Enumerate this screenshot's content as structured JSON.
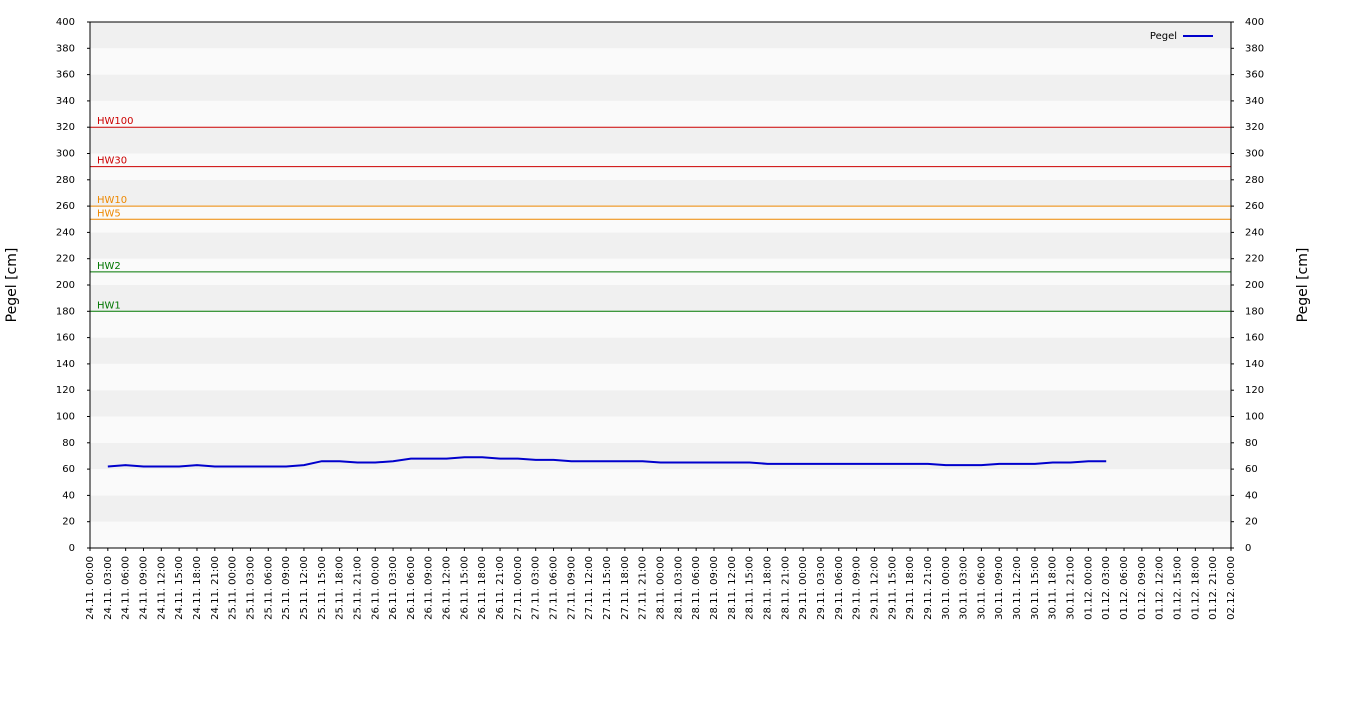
{
  "chart_data": {
    "type": "line",
    "ylabel": "Pegel [cm]",
    "y2label": "Pegel [cm]",
    "categories": [
      "24.11. 00:00",
      "24.11. 03:00",
      "24.11. 06:00",
      "24.11. 09:00",
      "24.11. 12:00",
      "24.11. 15:00",
      "24.11. 18:00",
      "24.11. 21:00",
      "25.11. 00:00",
      "25.11. 03:00",
      "25.11. 06:00",
      "25.11. 09:00",
      "25.11. 12:00",
      "25.11. 15:00",
      "25.11. 18:00",
      "25.11. 21:00",
      "26.11. 00:00",
      "26.11. 03:00",
      "26.11. 06:00",
      "26.11. 09:00",
      "26.11. 12:00",
      "26.11. 15:00",
      "26.11. 18:00",
      "26.11. 21:00",
      "27.11. 00:00",
      "27.11. 03:00",
      "27.11. 06:00",
      "27.11. 09:00",
      "27.11. 12:00",
      "27.11. 15:00",
      "27.11. 18:00",
      "27.11. 21:00",
      "28.11. 00:00",
      "28.11. 03:00",
      "28.11. 06:00",
      "28.11. 09:00",
      "28.11. 12:00",
      "28.11. 15:00",
      "28.11. 18:00",
      "28.11. 21:00",
      "29.11. 00:00",
      "29.11. 03:00",
      "29.11. 06:00",
      "29.11. 09:00",
      "29.11. 12:00",
      "29.11. 15:00",
      "29.11. 18:00",
      "29.11. 21:00",
      "30.11. 00:00",
      "30.11. 03:00",
      "30.11. 06:00",
      "30.11. 09:00",
      "30.11. 12:00",
      "30.11. 15:00",
      "30.11. 18:00",
      "30.11. 21:00",
      "01.12. 00:00",
      "01.12. 03:00",
      "01.12. 06:00",
      "01.12. 09:00",
      "01.12. 12:00",
      "01.12. 15:00",
      "01.12. 18:00",
      "01.12. 21:00",
      "02.12. 00:00"
    ],
    "series": [
      {
        "name": "Pegel",
        "color": "#0000cc",
        "values": [
          null,
          62,
          63,
          62,
          62,
          62,
          63,
          62,
          62,
          62,
          62,
          62,
          63,
          66,
          66,
          65,
          65,
          66,
          68,
          68,
          68,
          69,
          69,
          68,
          68,
          67,
          67,
          66,
          66,
          66,
          66,
          66,
          65,
          65,
          65,
          65,
          65,
          65,
          64,
          64,
          64,
          64,
          64,
          64,
          64,
          64,
          64,
          64,
          63,
          63,
          63,
          64,
          64,
          64,
          65,
          65,
          66,
          66,
          null,
          null,
          null,
          null,
          null,
          null,
          null
        ]
      }
    ],
    "thresholds": [
      {
        "label": "HW100",
        "value": 320,
        "color": "#cc0000"
      },
      {
        "label": "HW30",
        "value": 290,
        "color": "#cc0000"
      },
      {
        "label": "HW10",
        "value": 260,
        "color": "#ee8800"
      },
      {
        "label": "HW5",
        "value": 250,
        "color": "#ee8800"
      },
      {
        "label": "HW2",
        "value": 210,
        "color": "#007700"
      },
      {
        "label": "HW1",
        "value": 180,
        "color": "#007700"
      }
    ],
    "ylim": [
      0,
      400
    ],
    "yticks": [
      0,
      20,
      40,
      60,
      80,
      100,
      120,
      140,
      160,
      180,
      200,
      220,
      240,
      260,
      280,
      300,
      320,
      340,
      360,
      380,
      400
    ],
    "y2lim": [
      0,
      400
    ],
    "y2ticks": [
      0,
      20,
      40,
      60,
      80,
      100,
      120,
      140,
      160,
      180,
      200,
      220,
      240,
      260,
      280,
      300,
      320,
      340,
      360,
      380,
      400
    ],
    "legend": "top-right"
  }
}
